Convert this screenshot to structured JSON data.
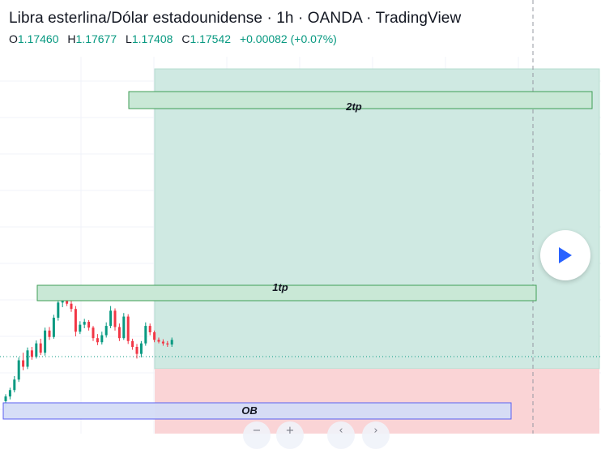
{
  "header": {
    "title": "Libra esterlina/Dólar estadounidense · 1h · OANDA · TradingView",
    "ohlc": {
      "open_label": "O",
      "open": "1.17460",
      "high_label": "H",
      "high": "1.17677",
      "low_label": "L",
      "low": "1.17408",
      "close_label": "C",
      "close": "1.17542",
      "change": "+0.00082 (+0.07%)"
    }
  },
  "colors": {
    "up": "#089981",
    "down": "#f23645",
    "profit_zone": "#cfe9e2",
    "loss_zone": "#fad4d6",
    "tp_box_fill": "#c9e8d6",
    "tp_box_border": "#3f9e55",
    "ob_box_fill": "#d4dcf7",
    "ob_box_border": "#5a5ff0",
    "play_icon": "#2962ff"
  },
  "controls": {
    "play_icon": "play-icon",
    "bottom_icons": [
      "minus-icon",
      "plus-icon",
      "chevron-left-icon",
      "chevron-right-icon"
    ]
  },
  "chart_data": {
    "type": "candlestick",
    "annotations": [
      "2tp",
      "1tp",
      "OB"
    ],
    "candles": [
      {
        "o": 0.07,
        "h": 0.19,
        "l": -0.05,
        "c": 0.15
      },
      {
        "o": 0.15,
        "h": 0.3,
        "l": 0.1,
        "c": 0.26
      },
      {
        "o": 0.26,
        "h": 0.5,
        "l": 0.22,
        "c": 0.44
      },
      {
        "o": 0.44,
        "h": 0.82,
        "l": 0.4,
        "c": 0.77
      },
      {
        "o": 0.77,
        "h": 0.9,
        "l": 0.6,
        "c": 0.66
      },
      {
        "o": 0.66,
        "h": 0.99,
        "l": 0.62,
        "c": 0.94
      },
      {
        "o": 0.94,
        "h": 1.0,
        "l": 0.78,
        "c": 0.83
      },
      {
        "o": 0.83,
        "h": 1.11,
        "l": 0.8,
        "c": 1.06
      },
      {
        "o": 1.06,
        "h": 1.14,
        "l": 0.86,
        "c": 0.9
      },
      {
        "o": 0.9,
        "h": 1.33,
        "l": 0.85,
        "c": 1.28
      },
      {
        "o": 1.28,
        "h": 1.34,
        "l": 1.12,
        "c": 1.17
      },
      {
        "o": 1.17,
        "h": 1.55,
        "l": 1.14,
        "c": 1.5
      },
      {
        "o": 1.5,
        "h": 1.82,
        "l": 1.45,
        "c": 1.76
      },
      {
        "o": 1.76,
        "h": 1.88,
        "l": 1.68,
        "c": 1.83
      },
      {
        "o": 1.83,
        "h": 1.86,
        "l": 1.7,
        "c": 1.74
      },
      {
        "o": 1.74,
        "h": 1.8,
        "l": 1.6,
        "c": 1.65
      },
      {
        "o": 1.65,
        "h": 1.7,
        "l": 1.18,
        "c": 1.26
      },
      {
        "o": 1.26,
        "h": 1.44,
        "l": 1.22,
        "c": 1.38
      },
      {
        "o": 1.38,
        "h": 1.48,
        "l": 1.32,
        "c": 1.43
      },
      {
        "o": 1.43,
        "h": 1.46,
        "l": 1.28,
        "c": 1.33
      },
      {
        "o": 1.33,
        "h": 1.36,
        "l": 1.1,
        "c": 1.15
      },
      {
        "o": 1.15,
        "h": 1.22,
        "l": 1.03,
        "c": 1.08
      },
      {
        "o": 1.08,
        "h": 1.26,
        "l": 1.04,
        "c": 1.2
      },
      {
        "o": 1.2,
        "h": 1.42,
        "l": 1.16,
        "c": 1.36
      },
      {
        "o": 1.36,
        "h": 1.7,
        "l": 1.32,
        "c": 1.62
      },
      {
        "o": 1.62,
        "h": 1.66,
        "l": 1.28,
        "c": 1.34
      },
      {
        "o": 1.34,
        "h": 1.4,
        "l": 1.1,
        "c": 1.15
      },
      {
        "o": 1.15,
        "h": 1.58,
        "l": 1.12,
        "c": 1.52
      },
      {
        "o": 1.52,
        "h": 1.56,
        "l": 1.05,
        "c": 1.1
      },
      {
        "o": 1.1,
        "h": 1.14,
        "l": 0.95,
        "c": 1.0
      },
      {
        "o": 1.0,
        "h": 1.05,
        "l": 0.8,
        "c": 0.88
      },
      {
        "o": 0.88,
        "h": 1.1,
        "l": 0.82,
        "c": 1.06
      },
      {
        "o": 1.06,
        "h": 1.42,
        "l": 1.02,
        "c": 1.36
      },
      {
        "o": 1.36,
        "h": 1.4,
        "l": 1.2,
        "c": 1.25
      },
      {
        "o": 1.25,
        "h": 1.28,
        "l": 1.08,
        "c": 1.12
      },
      {
        "o": 1.12,
        "h": 1.16,
        "l": 1.06,
        "c": 1.09
      },
      {
        "o": 1.09,
        "h": 1.13,
        "l": 1.02,
        "c": 1.06
      },
      {
        "o": 1.06,
        "h": 1.1,
        "l": 1.0,
        "c": 1.04
      },
      {
        "o": 1.04,
        "h": 1.16,
        "l": 1.0,
        "c": 1.12
      }
    ]
  }
}
